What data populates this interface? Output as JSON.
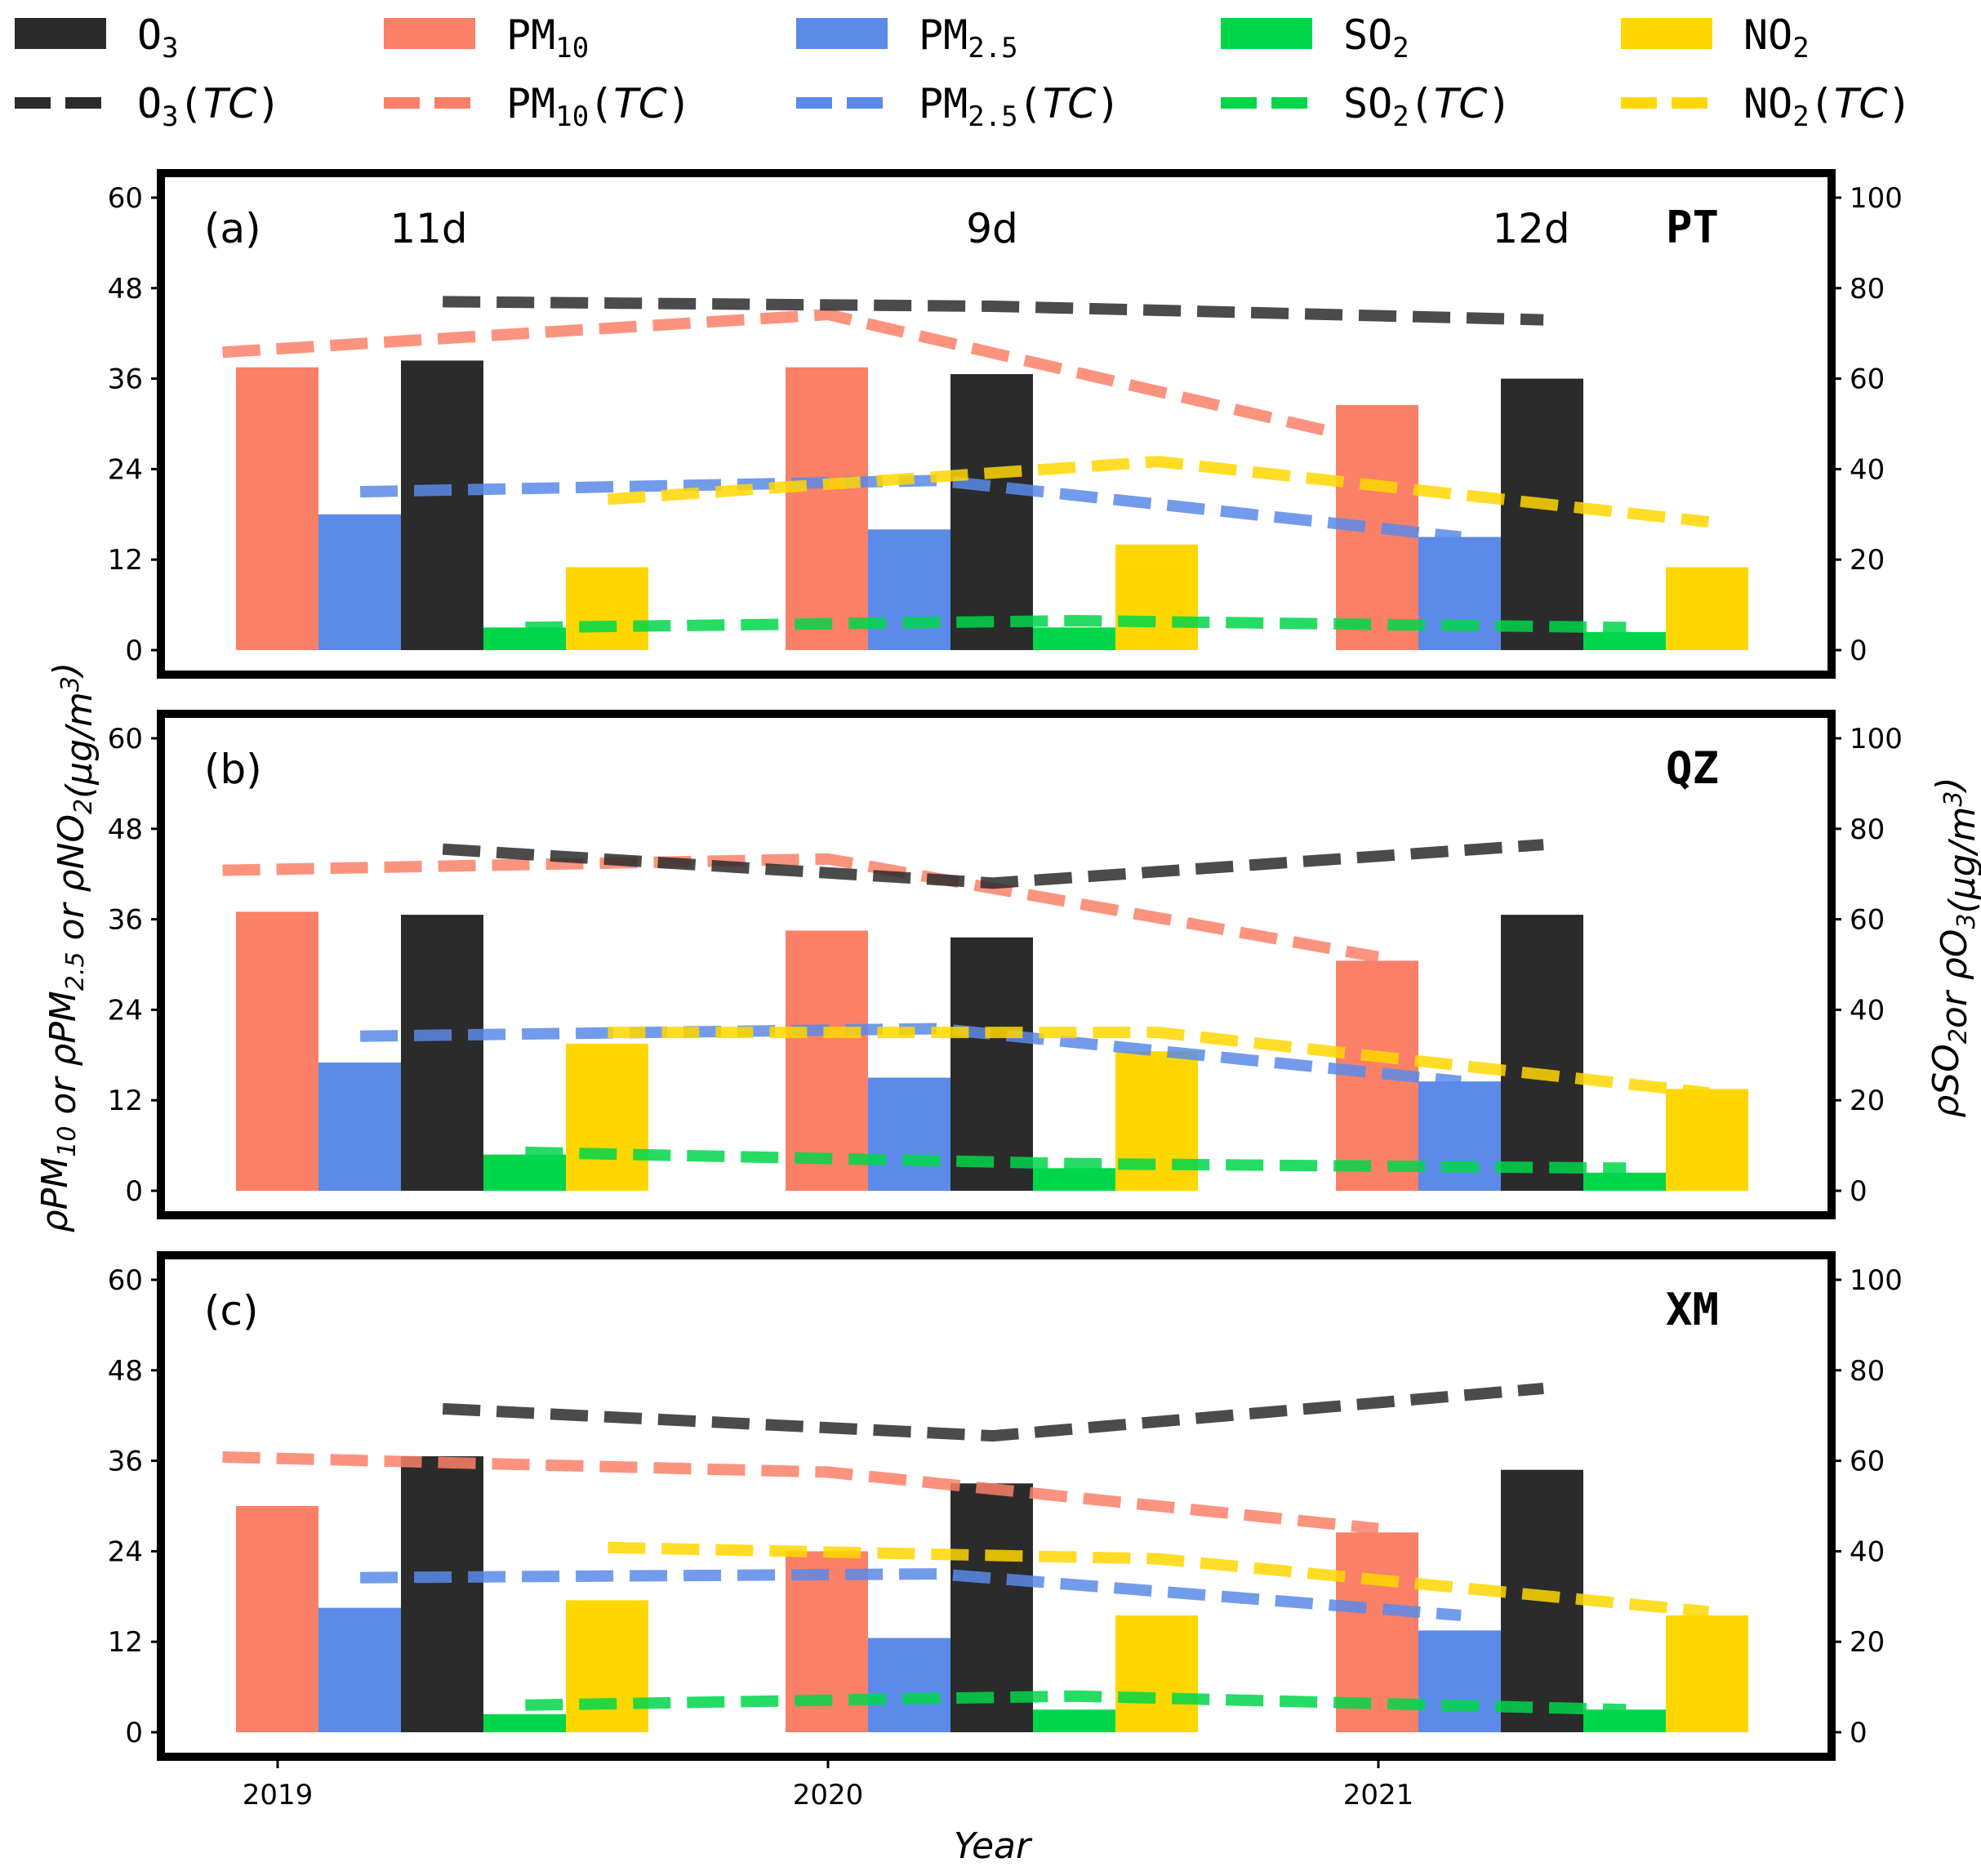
{
  "chart_data": {
    "type": "bar",
    "xlabel": "Year",
    "ylabel_left": "ρPM10 or ρPM2.5 or ρNO2(μg/m3)",
    "ylabel_right": "ρSO2or ρO3(μg/m3)",
    "categories": [
      "2019",
      "2020",
      "2021"
    ],
    "left_axis": {
      "range": [
        0,
        60
      ],
      "ticks": [
        "0",
        "12",
        "24",
        "36",
        "48",
        "60"
      ]
    },
    "right_axis": {
      "range": [
        0,
        100
      ],
      "ticks": [
        "0",
        "20",
        "40",
        "60",
        "80",
        "100"
      ]
    },
    "legend": {
      "bars": [
        {
          "label": "O3",
          "sub": "3",
          "base": "O",
          "color": "#2b2b2b"
        },
        {
          "label": "PM10",
          "sub": "10",
          "base": "PM",
          "color": "#fa8068"
        },
        {
          "label": "PM2.5",
          "sub": "2.5",
          "base": "PM",
          "color": "#5b8ae8"
        },
        {
          "label": "SO2",
          "sub": "2",
          "base": "SO",
          "color": "#00d64a"
        },
        {
          "label": "NO2",
          "sub": "2",
          "base": "NO",
          "color": "#ffd700"
        }
      ],
      "lines": [
        {
          "label": "O3(TC)",
          "base": "O",
          "sub": "3",
          "tc": "TC",
          "color": "#2b2b2b"
        },
        {
          "label": "PM10(TC)",
          "base": "PM",
          "sub": "10",
          "tc": "TC",
          "color": "#fa8068"
        },
        {
          "label": "PM2.5(TC)",
          "base": "PM",
          "sub": "2.5",
          "tc": "TC",
          "color": "#5b8ae8"
        },
        {
          "label": "SO2(TC)",
          "base": "SO",
          "sub": "2",
          "tc": "TC",
          "color": "#00d64a"
        },
        {
          "label": "NO2(TC)",
          "base": "NO",
          "sub": "2",
          "tc": "TC",
          "color": "#ffd700"
        }
      ]
    },
    "panels": [
      {
        "id": "(a)",
        "site": "PT",
        "day_labels": [
          "11d",
          "9d",
          "12d"
        ],
        "bars": {
          "PM10": [
            37.5,
            37.5,
            32.5
          ],
          "PM2.5": [
            18,
            16,
            15
          ],
          "O3": [
            64,
            61,
            60
          ],
          "SO2": [
            5,
            5,
            4
          ],
          "NO2": [
            11,
            14,
            11
          ]
        },
        "tc_lines": {
          "PM10": [
            [
              -0.1,
              39.5
            ],
            [
              1.0,
              44.5
            ],
            [
              2.0,
              27.5
            ]
          ],
          "PM2.5": [
            [
              0.15,
              21
            ],
            [
              1.2,
              22.5
            ],
            [
              2.15,
              15
            ]
          ],
          "O3": [
            [
              0.3,
              77
            ],
            [
              1.3,
              76
            ],
            [
              2.3,
              73
            ]
          ],
          "SO2": [
            [
              0.45,
              5
            ],
            [
              1.45,
              6.5
            ],
            [
              2.45,
              5
            ]
          ],
          "NO2": [
            [
              0.6,
              20
            ],
            [
              1.6,
              25
            ],
            [
              2.6,
              17
            ]
          ]
        }
      },
      {
        "id": "(b)",
        "site": "QZ",
        "day_labels": [],
        "bars": {
          "PM10": [
            37,
            34.5,
            30.5
          ],
          "PM2.5": [
            17,
            15,
            14.5
          ],
          "O3": [
            61,
            56,
            61
          ],
          "SO2": [
            8,
            5,
            4
          ],
          "NO2": [
            19.5,
            18.5,
            13.5
          ]
        },
        "tc_lines": {
          "PM10": [
            [
              -0.1,
              42.5
            ],
            [
              1.0,
              44
            ],
            [
              2.0,
              31
            ]
          ],
          "PM2.5": [
            [
              0.15,
              20.5
            ],
            [
              1.2,
              21.5
            ],
            [
              2.15,
              14.5
            ]
          ],
          "O3": [
            [
              0.3,
              75.5
            ],
            [
              1.3,
              68
            ],
            [
              2.3,
              76.5
            ]
          ],
          "SO2": [
            [
              0.45,
              8.5
            ],
            [
              1.45,
              6
            ],
            [
              2.45,
              5
            ]
          ],
          "NO2": [
            [
              0.6,
              21
            ],
            [
              1.6,
              21
            ],
            [
              2.6,
              13
            ]
          ]
        }
      },
      {
        "id": "(c)",
        "site": "XM",
        "day_labels": [],
        "bars": {
          "PM10": [
            30,
            24,
            26.5
          ],
          "PM2.5": [
            16.5,
            12.5,
            13.5
          ],
          "O3": [
            61,
            55,
            58
          ],
          "SO2": [
            4,
            5,
            5
          ],
          "NO2": [
            17.5,
            15.5,
            15.5
          ]
        },
        "tc_lines": {
          "PM10": [
            [
              -0.1,
              36.5
            ],
            [
              1.0,
              34.5
            ],
            [
              2.0,
              27
            ]
          ],
          "PM2.5": [
            [
              0.15,
              20.5
            ],
            [
              1.2,
              21
            ],
            [
              2.15,
              15.5
            ]
          ],
          "O3": [
            [
              0.3,
              71.5
            ],
            [
              1.3,
              65.5
            ],
            [
              2.3,
              76
            ]
          ],
          "SO2": [
            [
              0.45,
              6
            ],
            [
              1.45,
              8
            ],
            [
              2.45,
              5
            ]
          ],
          "NO2": [
            [
              0.6,
              24.5
            ],
            [
              1.6,
              23
            ],
            [
              2.6,
              16
            ]
          ]
        }
      }
    ]
  }
}
